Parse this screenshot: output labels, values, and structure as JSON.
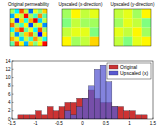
{
  "chart_data": [
    {
      "type": "heatmap",
      "title": "Original permeability",
      "zlim": [
        -1.5,
        1.5
      ],
      "cells": [
        [
          0.1,
          -0.4,
          0.9,
          0.2,
          -0.8,
          0.3,
          0.0,
          0.5
        ],
        [
          -0.6,
          0.4,
          0.2,
          1.1,
          0.1,
          -0.2,
          0.7,
          -0.1
        ],
        [
          0.3,
          -1.0,
          0.5,
          -0.3,
          0.6,
          1.2,
          -0.5,
          0.2
        ],
        [
          0.8,
          0.1,
          -0.2,
          0.4,
          -0.9,
          0.2,
          0.3,
          -0.7
        ],
        [
          -0.3,
          0.6,
          1.0,
          -0.1,
          0.3,
          -0.4,
          0.9,
          0.1
        ],
        [
          0.2,
          -0.7,
          0.0,
          0.5,
          0.8,
          0.1,
          -1.1,
          0.4
        ],
        [
          0.6,
          0.3,
          -0.5,
          0.2,
          -0.2,
          0.7,
          0.2,
          -0.3
        ],
        [
          -0.1,
          0.9,
          0.4,
          -0.6,
          0.5,
          0.0,
          0.4,
          1.1
        ]
      ]
    },
    {
      "type": "heatmap",
      "title": "Upscaled (x-direction)",
      "zlim": [
        -1.5,
        1.5
      ],
      "cells": [
        [
          0.1,
          0.4,
          0.2,
          0.3
        ],
        [
          0.0,
          0.2,
          0.1,
          0.1
        ],
        [
          0.2,
          0.3,
          0.3,
          0.0
        ],
        [
          0.4,
          0.1,
          0.2,
          0.5
        ]
      ]
    },
    {
      "type": "heatmap",
      "title": "Upscaled (y-direction)",
      "zlim": [
        -1.5,
        1.5
      ],
      "cells": [
        [
          0.2,
          0.3,
          0.1,
          0.4
        ],
        [
          0.1,
          0.3,
          0.2,
          0.0
        ],
        [
          0.3,
          0.2,
          0.4,
          0.1
        ],
        [
          0.2,
          0.0,
          0.3,
          0.4
        ]
      ]
    },
    {
      "type": "histogram",
      "legend": "upper right",
      "bins": [
        -1.5,
        -1.375,
        -1.25,
        -1.125,
        -1,
        -0.875,
        -0.75,
        -0.625,
        -0.5,
        -0.375,
        -0.25,
        -0.125,
        0,
        0.125,
        0.25,
        0.375,
        0.5,
        0.625,
        0.75,
        0.875,
        1,
        1.125,
        1.25,
        1.375,
        1.5
      ],
      "series": [
        {
          "name": "Original",
          "color": "#cc3333",
          "values": [
            0,
            1,
            1,
            1,
            2,
            1,
            3,
            2,
            3,
            4,
            4,
            5,
            5,
            7,
            5,
            4,
            4,
            3,
            3,
            2,
            2,
            1,
            1,
            0
          ]
        },
        {
          "name": "Upscaled (x)",
          "color": "#5a5ad2",
          "values": [
            0,
            0,
            0,
            0,
            0,
            0,
            0,
            0,
            0,
            2,
            1,
            3,
            5,
            8,
            12,
            13,
            9,
            3,
            0,
            0,
            0,
            0,
            0,
            0
          ]
        }
      ],
      "xlim": [
        -1.5,
        1.5
      ],
      "xticks": [
        -1.5,
        -1,
        -0.5,
        0,
        0.5,
        1,
        1.5
      ],
      "ylim": [
        0,
        14
      ],
      "yticks": [
        0,
        2,
        4,
        6,
        8,
        10,
        12,
        14
      ]
    }
  ]
}
